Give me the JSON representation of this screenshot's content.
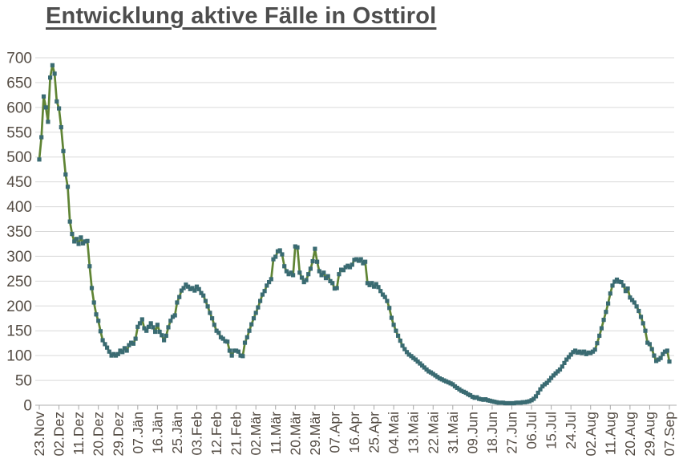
{
  "title": {
    "text": "Entwicklung aktive Fälle in Osttirol",
    "color": "#4d4d4d"
  },
  "chart_data": {
    "type": "line",
    "title": "Entwicklung aktive Fälle in Osttirol",
    "xlabel": "",
    "ylabel": "",
    "ylim": [
      0,
      700
    ],
    "y_tick_step": 50,
    "y_tick_labels": [
      "0",
      "50",
      "100",
      "150",
      "200",
      "250",
      "300",
      "350",
      "400",
      "450",
      "500",
      "550",
      "600",
      "650",
      "700"
    ],
    "x_tick_interval_days": 9,
    "x_tick_labels": [
      "23.Nov",
      "02.Dez",
      "11.Dez",
      "20.Dez",
      "29.Dez",
      "07.Jän",
      "16.Jän",
      "25.Jän",
      "03.Feb",
      "12.Feb",
      "21.Feb",
      "02.Mär",
      "11.Mär",
      "20.Mär",
      "29.Mär",
      "07.Apr",
      "16.Apr",
      "25.Apr",
      "04.Mai",
      "13.Mai",
      "22.Mai",
      "31.Mai",
      "09.Jun",
      "18.Jun",
      "27.Jun",
      "06.Jul",
      "15.Jul",
      "24.Jul",
      "02.Aug",
      "11.Aug",
      "20.Aug",
      "29.Aug",
      "07.Sep"
    ],
    "grid": "horizontal",
    "legend": "none",
    "colors": {
      "line": "#5f8434",
      "marker": "#3a6b72",
      "axis_labels": "#544c44",
      "gridline": "#d9d9d9",
      "axis_line": "#bfbfbf",
      "tick": "#a6a6a6"
    },
    "series": [
      {
        "name": "aktive Fälle",
        "marker": "square",
        "start_date": "23.Nov",
        "end_date": "07.Sep",
        "values": [
          495,
          540,
          622,
          600,
          571,
          660,
          685,
          668,
          612,
          598,
          560,
          512,
          465,
          440,
          370,
          345,
          330,
          335,
          325,
          338,
          326,
          330,
          331,
          280,
          236,
          207,
          183,
          170,
          149,
          131,
          123,
          116,
          108,
          100,
          103,
          100,
          103,
          110,
          107,
          115,
          110,
          121,
          126,
          124,
          134,
          158,
          165,
          173,
          155,
          150,
          158,
          165,
          157,
          148,
          162,
          148,
          141,
          131,
          140,
          157,
          170,
          178,
          181,
          207,
          218,
          231,
          236,
          243,
          239,
          234,
          236,
          231,
          239,
          234,
          226,
          221,
          210,
          199,
          186,
          175,
          162,
          150,
          146,
          137,
          134,
          129,
          128,
          110,
          100,
          110,
          110,
          108,
          100,
          99,
          126,
          137,
          150,
          163,
          175,
          186,
          197,
          210,
          223,
          230,
          241,
          248,
          254,
          294,
          299,
          310,
          312,
          304,
          280,
          270,
          264,
          267,
          262,
          320,
          318,
          267,
          257,
          248,
          252,
          264,
          275,
          290,
          315,
          289,
          270,
          262,
          267,
          256,
          260,
          250,
          246,
          235,
          236,
          264,
          273,
          272,
          278,
          281,
          278,
          283,
          293,
          294,
          291,
          294,
          286,
          289,
          246,
          242,
          246,
          239,
          244,
          238,
          230,
          223,
          218,
          210,
          196,
          176,
          162,
          150,
          140,
          130,
          120,
          113,
          107,
          102,
          99,
          95,
          92,
          88,
          84,
          80,
          76,
          72,
          68,
          66,
          63,
          60,
          57,
          54,
          52,
          50,
          48,
          46,
          44,
          42,
          38,
          35,
          32,
          29,
          27,
          25,
          22,
          20,
          17,
          15,
          16,
          13,
          12,
          11,
          12,
          10,
          9,
          8,
          7,
          6,
          5,
          5,
          5,
          4,
          4,
          4,
          4,
          4,
          5,
          5,
          5,
          6,
          6,
          7,
          8,
          10,
          13,
          18,
          25,
          32,
          38,
          42,
          45,
          50,
          55,
          60,
          64,
          68,
          72,
          78,
          85,
          92,
          97,
          102,
          107,
          110,
          106,
          108,
          105,
          108,
          103,
          106,
          105,
          108,
          112,
          125,
          140,
          155,
          172,
          188,
          205,
          225,
          241,
          249,
          253,
          249,
          248,
          241,
          230,
          235,
          217,
          212,
          207,
          199,
          190,
          178,
          165,
          150,
          126,
          123,
          113,
          100,
          89,
          92,
          95,
          103,
          108,
          110,
          88
        ]
      }
    ]
  }
}
